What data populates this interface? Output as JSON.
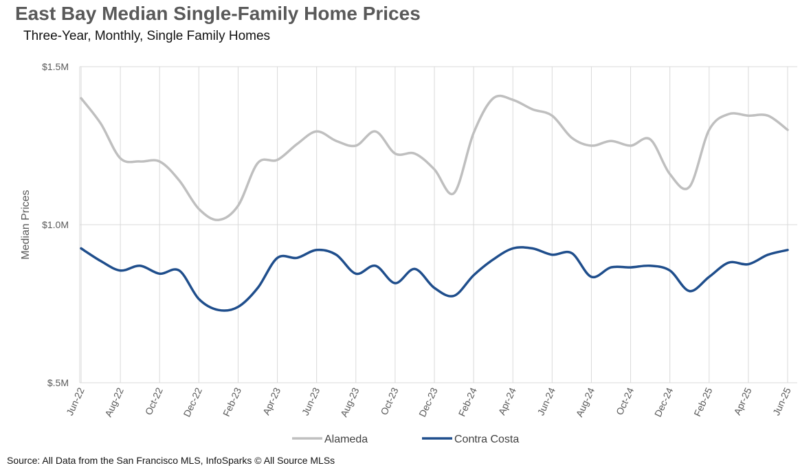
{
  "chart_data": {
    "type": "line",
    "title": "East Bay Median Single-Family Home Prices",
    "subtitle": "Three-Year, Monthly, Single Family Homes",
    "ylabel": "Median Prices",
    "xlabel": "",
    "ylim": [
      500000,
      1500000
    ],
    "yticks": [
      {
        "value": 1500000,
        "label": "$1.5M"
      },
      {
        "value": 1000000,
        "label": "$1.0M"
      },
      {
        "value": 500000,
        "label": "$.5M"
      }
    ],
    "x": [
      "Jun-22",
      "Jul-22",
      "Aug-22",
      "Sep-22",
      "Oct-22",
      "Nov-22",
      "Dec-22",
      "Jan-23",
      "Feb-23",
      "Mar-23",
      "Apr-23",
      "May-23",
      "Jun-23",
      "Jul-23",
      "Aug-23",
      "Sep-23",
      "Oct-23",
      "Nov-23",
      "Dec-23",
      "Jan-24",
      "Feb-24",
      "Mar-24",
      "Apr-24",
      "May-24",
      "Jun-24",
      "Jul-24",
      "Aug-24",
      "Sep-24",
      "Oct-24",
      "Nov-24",
      "Dec-24",
      "Jan-25",
      "Feb-25",
      "Mar-25",
      "Apr-25",
      "May-25",
      "Jun-25"
    ],
    "xtick_labels": [
      "Jun-22",
      "Aug-22",
      "Oct-22",
      "Dec-22",
      "Feb-23",
      "Apr-23",
      "Jun-23",
      "Aug-23",
      "Oct-23",
      "Dec-23",
      "Feb-24",
      "Apr-24",
      "Jun-24",
      "Aug-24",
      "Oct-24",
      "Dec-24",
      "Feb-25",
      "Apr-25",
      "Jun-25"
    ],
    "grid": true,
    "legend_position": "bottom",
    "series": [
      {
        "name": "Alameda",
        "color": "#bfbfbf",
        "values": [
          1400000,
          1320000,
          1210000,
          1200000,
          1200000,
          1140000,
          1050000,
          1015000,
          1060000,
          1195000,
          1205000,
          1255000,
          1295000,
          1265000,
          1250000,
          1295000,
          1225000,
          1225000,
          1175000,
          1100000,
          1290000,
          1400000,
          1395000,
          1365000,
          1345000,
          1275000,
          1250000,
          1265000,
          1250000,
          1270000,
          1160000,
          1120000,
          1300000,
          1350000,
          1345000,
          1345000,
          1300000
        ]
      },
      {
        "name": "Contra Costa",
        "color": "#1f4e8c",
        "values": [
          925000,
          885000,
          855000,
          870000,
          845000,
          855000,
          765000,
          730000,
          740000,
          800000,
          895000,
          895000,
          920000,
          905000,
          845000,
          870000,
          815000,
          860000,
          800000,
          775000,
          840000,
          890000,
          925000,
          925000,
          905000,
          910000,
          835000,
          865000,
          865000,
          870000,
          855000,
          790000,
          835000,
          880000,
          875000,
          905000,
          920000
        ]
      }
    ]
  },
  "footer": {
    "source": "Source: All Data from the San Francisco MLS, InfoSparks © All Source MLSs"
  }
}
